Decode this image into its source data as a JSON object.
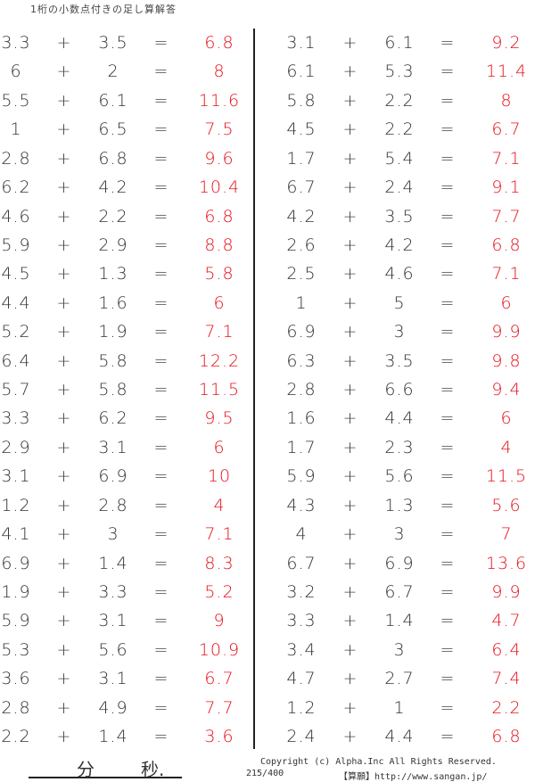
{
  "header": {
    "title": "1桁の小数点付きの足し算解答"
  },
  "colors": {
    "answer": "#e8101c",
    "text": "#333333"
  },
  "symbols": {
    "plus": "+",
    "equals": "="
  },
  "left": [
    [
      "3.3",
      "3.5",
      "6.8"
    ],
    [
      "6",
      "2",
      "8"
    ],
    [
      "5.5",
      "6.1",
      "11.6"
    ],
    [
      "1",
      "6.5",
      "7.5"
    ],
    [
      "2.8",
      "6.8",
      "9.6"
    ],
    [
      "6.2",
      "4.2",
      "10.4"
    ],
    [
      "4.6",
      "2.2",
      "6.8"
    ],
    [
      "5.9",
      "2.9",
      "8.8"
    ],
    [
      "4.5",
      "1.3",
      "5.8"
    ],
    [
      "4.4",
      "1.6",
      "6"
    ],
    [
      "5.2",
      "1.9",
      "7.1"
    ],
    [
      "6.4",
      "5.8",
      "12.2"
    ],
    [
      "5.7",
      "5.8",
      "11.5"
    ],
    [
      "3.3",
      "6.2",
      "9.5"
    ],
    [
      "2.9",
      "3.1",
      "6"
    ],
    [
      "3.1",
      "6.9",
      "10"
    ],
    [
      "1.2",
      "2.8",
      "4"
    ],
    [
      "4.1",
      "3",
      "7.1"
    ],
    [
      "6.9",
      "1.4",
      "8.3"
    ],
    [
      "1.9",
      "3.3",
      "5.2"
    ],
    [
      "5.9",
      "3.1",
      "9"
    ],
    [
      "5.3",
      "5.6",
      "10.9"
    ],
    [
      "3.6",
      "3.1",
      "6.7"
    ],
    [
      "2.8",
      "4.9",
      "7.7"
    ],
    [
      "2.2",
      "1.4",
      "3.6"
    ]
  ],
  "right": [
    [
      "3.1",
      "6.1",
      "9.2"
    ],
    [
      "6.1",
      "5.3",
      "11.4"
    ],
    [
      "5.8",
      "2.2",
      "8"
    ],
    [
      "4.5",
      "2.2",
      "6.7"
    ],
    [
      "1.7",
      "5.4",
      "7.1"
    ],
    [
      "6.7",
      "2.4",
      "9.1"
    ],
    [
      "4.2",
      "3.5",
      "7.7"
    ],
    [
      "2.6",
      "4.2",
      "6.8"
    ],
    [
      "2.5",
      "4.6",
      "7.1"
    ],
    [
      "1",
      "5",
      "6"
    ],
    [
      "6.9",
      "3",
      "9.9"
    ],
    [
      "6.3",
      "3.5",
      "9.8"
    ],
    [
      "2.8",
      "6.6",
      "9.4"
    ],
    [
      "1.6",
      "4.4",
      "6"
    ],
    [
      "1.7",
      "2.3",
      "4"
    ],
    [
      "5.9",
      "5.6",
      "11.5"
    ],
    [
      "4.3",
      "1.3",
      "5.6"
    ],
    [
      "4",
      "3",
      "7"
    ],
    [
      "6.7",
      "6.9",
      "13.6"
    ],
    [
      "3.2",
      "6.7",
      "9.9"
    ],
    [
      "3.3",
      "1.4",
      "4.7"
    ],
    [
      "3.4",
      "3",
      "6.4"
    ],
    [
      "4.7",
      "2.7",
      "7.4"
    ],
    [
      "1.2",
      "1",
      "2.2"
    ],
    [
      "2.4",
      "4.4",
      "6.8"
    ]
  ],
  "footer": {
    "minutes": "分",
    "seconds": "秒.",
    "copyright": "Copyright (c)  Alpha.Inc All Rights Reserved.",
    "page": "215/400",
    "site": "【算願】http://www.sangan.jp/"
  }
}
